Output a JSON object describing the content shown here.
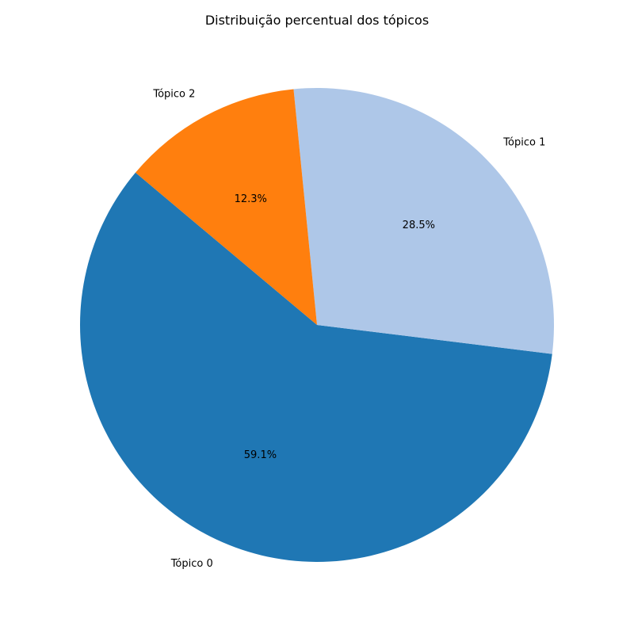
{
  "chart_data": {
    "type": "pie",
    "title": "Distribuição percentual dos tópicos",
    "slices": [
      {
        "label": "Tópico 0",
        "value": 59.1,
        "pct_label": "59.1%",
        "color": "#1f77b4"
      },
      {
        "label": "Tópico 1",
        "value": 28.5,
        "pct_label": "28.5%",
        "color": "#aec7e8"
      },
      {
        "label": "Tópico 2",
        "value": 12.3,
        "pct_label": "12.3%",
        "color": "#ff7f0e"
      }
    ],
    "start_angle_deg": 140,
    "direction": "counterclockwise",
    "legend": "none"
  }
}
